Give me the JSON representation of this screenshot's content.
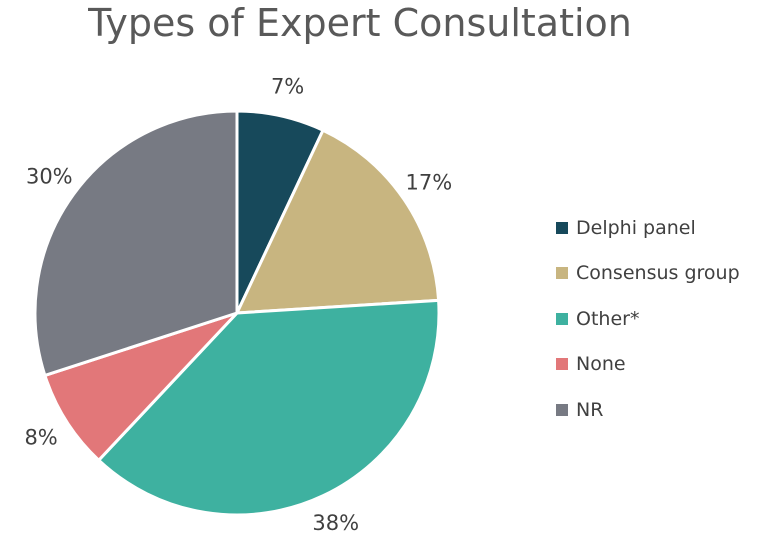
{
  "chart_data": {
    "type": "pie",
    "title": "Types of Expert Consultation",
    "categories": [
      "Delphi panel",
      "Consensus group",
      "Other*",
      "None",
      "NR"
    ],
    "values": [
      7,
      17,
      38,
      8,
      30
    ],
    "labels": [
      "7%",
      "17%",
      "38%",
      "8%",
      "30%"
    ],
    "colors": [
      "#17495b",
      "#c8b580",
      "#3eb1a0",
      "#e27779",
      "#777a83"
    ],
    "legend_position": "right"
  }
}
